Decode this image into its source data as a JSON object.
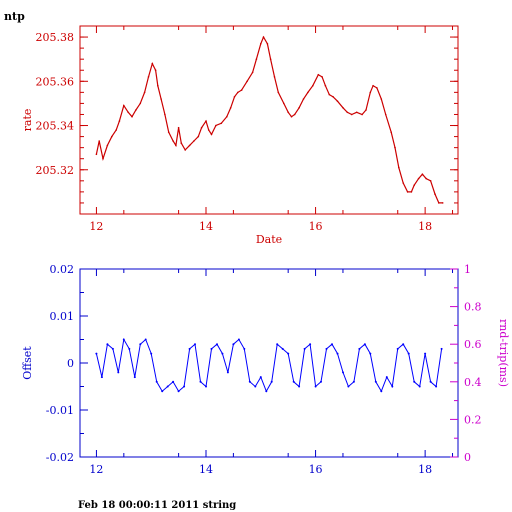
{
  "page": {
    "corner_label": "ntp",
    "footer": "Feb 18 00:00:11 2011 string"
  },
  "colors": {
    "top_axes": "#cc0000",
    "offset_axes": "#0000cc",
    "rtt_axes": "#cc00cc",
    "series_rate": "#cc0000",
    "series_offset": "#0000ff"
  },
  "chart_data": [
    {
      "type": "line",
      "xlabel": "Date",
      "ylabel": "rate",
      "xlim": [
        11.7,
        18.6
      ],
      "ylim": [
        205.3,
        205.385
      ],
      "x_ticks": [
        "12",
        "14",
        "16",
        "18"
      ],
      "y_ticks": [
        "205.32",
        "205.34",
        "205.36",
        "205.38"
      ],
      "series": [
        {
          "x": [
            12.0,
            12.05,
            12.12,
            12.2,
            12.28,
            12.36,
            12.42,
            12.5,
            12.58,
            12.65,
            12.72,
            12.8,
            12.88,
            12.95,
            13.02,
            13.08,
            13.12,
            13.18,
            13.25,
            13.32,
            13.4,
            13.45,
            13.5,
            13.55,
            13.62,
            13.7,
            13.78,
            13.86,
            13.92,
            14.0,
            14.05,
            14.1,
            14.18,
            14.28,
            14.38,
            14.45,
            14.52,
            14.58,
            14.65,
            14.75,
            14.85,
            14.92,
            15.0,
            15.05,
            15.12,
            15.18,
            15.25,
            15.32,
            15.42,
            15.5,
            15.56,
            15.62,
            15.7,
            15.78,
            15.86,
            15.95,
            16.05,
            16.12,
            16.18,
            16.25,
            16.32,
            16.4,
            16.5,
            16.58,
            16.66,
            16.75,
            16.85,
            16.92,
            17.0,
            17.05,
            17.12,
            17.2,
            17.28,
            17.38,
            17.45,
            17.52,
            17.6,
            17.68,
            17.75,
            17.8,
            17.88,
            17.95,
            18.02,
            18.1,
            18.18,
            18.25,
            18.32
          ],
          "y": [
            205.327,
            205.333,
            205.325,
            205.331,
            205.335,
            205.338,
            205.342,
            205.349,
            205.346,
            205.344,
            205.347,
            205.35,
            205.355,
            205.362,
            205.368,
            205.365,
            205.358,
            205.352,
            205.345,
            205.337,
            205.333,
            205.331,
            205.339,
            205.332,
            205.329,
            205.331,
            205.333,
            205.335,
            205.339,
            205.342,
            205.338,
            205.336,
            205.34,
            205.341,
            205.344,
            205.348,
            205.353,
            205.355,
            205.356,
            205.36,
            205.364,
            205.37,
            205.377,
            205.38,
            205.377,
            205.37,
            205.362,
            205.355,
            205.35,
            205.346,
            205.344,
            205.345,
            205.348,
            205.352,
            205.355,
            205.358,
            205.363,
            205.362,
            205.358,
            205.354,
            205.353,
            205.351,
            205.348,
            205.346,
            205.345,
            205.346,
            205.345,
            205.347,
            205.355,
            205.358,
            205.357,
            205.352,
            205.345,
            205.337,
            205.33,
            205.321,
            205.314,
            205.31,
            205.31,
            205.313,
            205.316,
            205.318,
            205.316,
            205.315,
            205.309,
            205.305,
            205.305
          ]
        }
      ]
    },
    {
      "type": "line",
      "ylabel": "Offset",
      "y2label": "rnd-trip(ms)",
      "xlim": [
        11.7,
        18.6
      ],
      "ylim": [
        -0.02,
        0.02
      ],
      "y2lim": [
        0,
        1
      ],
      "x_ticks": [
        "12",
        "14",
        "16",
        "18"
      ],
      "y_ticks": [
        "-0.02",
        "-0.01",
        "0",
        "0.01",
        "0.02"
      ],
      "y2_ticks": [
        "0",
        "0.2",
        "0.4",
        "0.6",
        "0.8",
        "1"
      ],
      "series": [
        {
          "x": [
            12.0,
            12.1,
            12.2,
            12.3,
            12.4,
            12.5,
            12.6,
            12.7,
            12.8,
            12.9,
            13.0,
            13.1,
            13.2,
            13.3,
            13.4,
            13.5,
            13.6,
            13.7,
            13.8,
            13.9,
            14.0,
            14.1,
            14.2,
            14.3,
            14.4,
            14.5,
            14.6,
            14.7,
            14.8,
            14.9,
            15.0,
            15.1,
            15.2,
            15.3,
            15.4,
            15.5,
            15.6,
            15.7,
            15.8,
            15.9,
            16.0,
            16.1,
            16.2,
            16.3,
            16.4,
            16.5,
            16.6,
            16.7,
            16.8,
            16.9,
            17.0,
            17.1,
            17.2,
            17.3,
            17.4,
            17.5,
            17.6,
            17.7,
            17.8,
            17.9,
            18.0,
            18.1,
            18.2,
            18.3
          ],
          "y": [
            0.002,
            -0.003,
            0.004,
            0.003,
            -0.002,
            0.005,
            0.003,
            -0.003,
            0.004,
            0.005,
            0.002,
            -0.004,
            -0.006,
            -0.005,
            -0.004,
            -0.006,
            -0.005,
            0.003,
            0.004,
            -0.004,
            -0.005,
            0.003,
            0.004,
            0.002,
            -0.002,
            0.004,
            0.005,
            0.003,
            -0.004,
            -0.005,
            -0.003,
            -0.006,
            -0.004,
            0.004,
            0.003,
            0.002,
            -0.004,
            -0.005,
            0.003,
            0.004,
            -0.005,
            -0.004,
            0.003,
            0.004,
            0.002,
            -0.002,
            -0.005,
            -0.004,
            0.003,
            0.004,
            0.002,
            -0.004,
            -0.006,
            -0.003,
            -0.005,
            0.003,
            0.004,
            0.002,
            -0.004,
            -0.005,
            0.002,
            -0.004,
            -0.005,
            0.003
          ]
        }
      ]
    }
  ]
}
